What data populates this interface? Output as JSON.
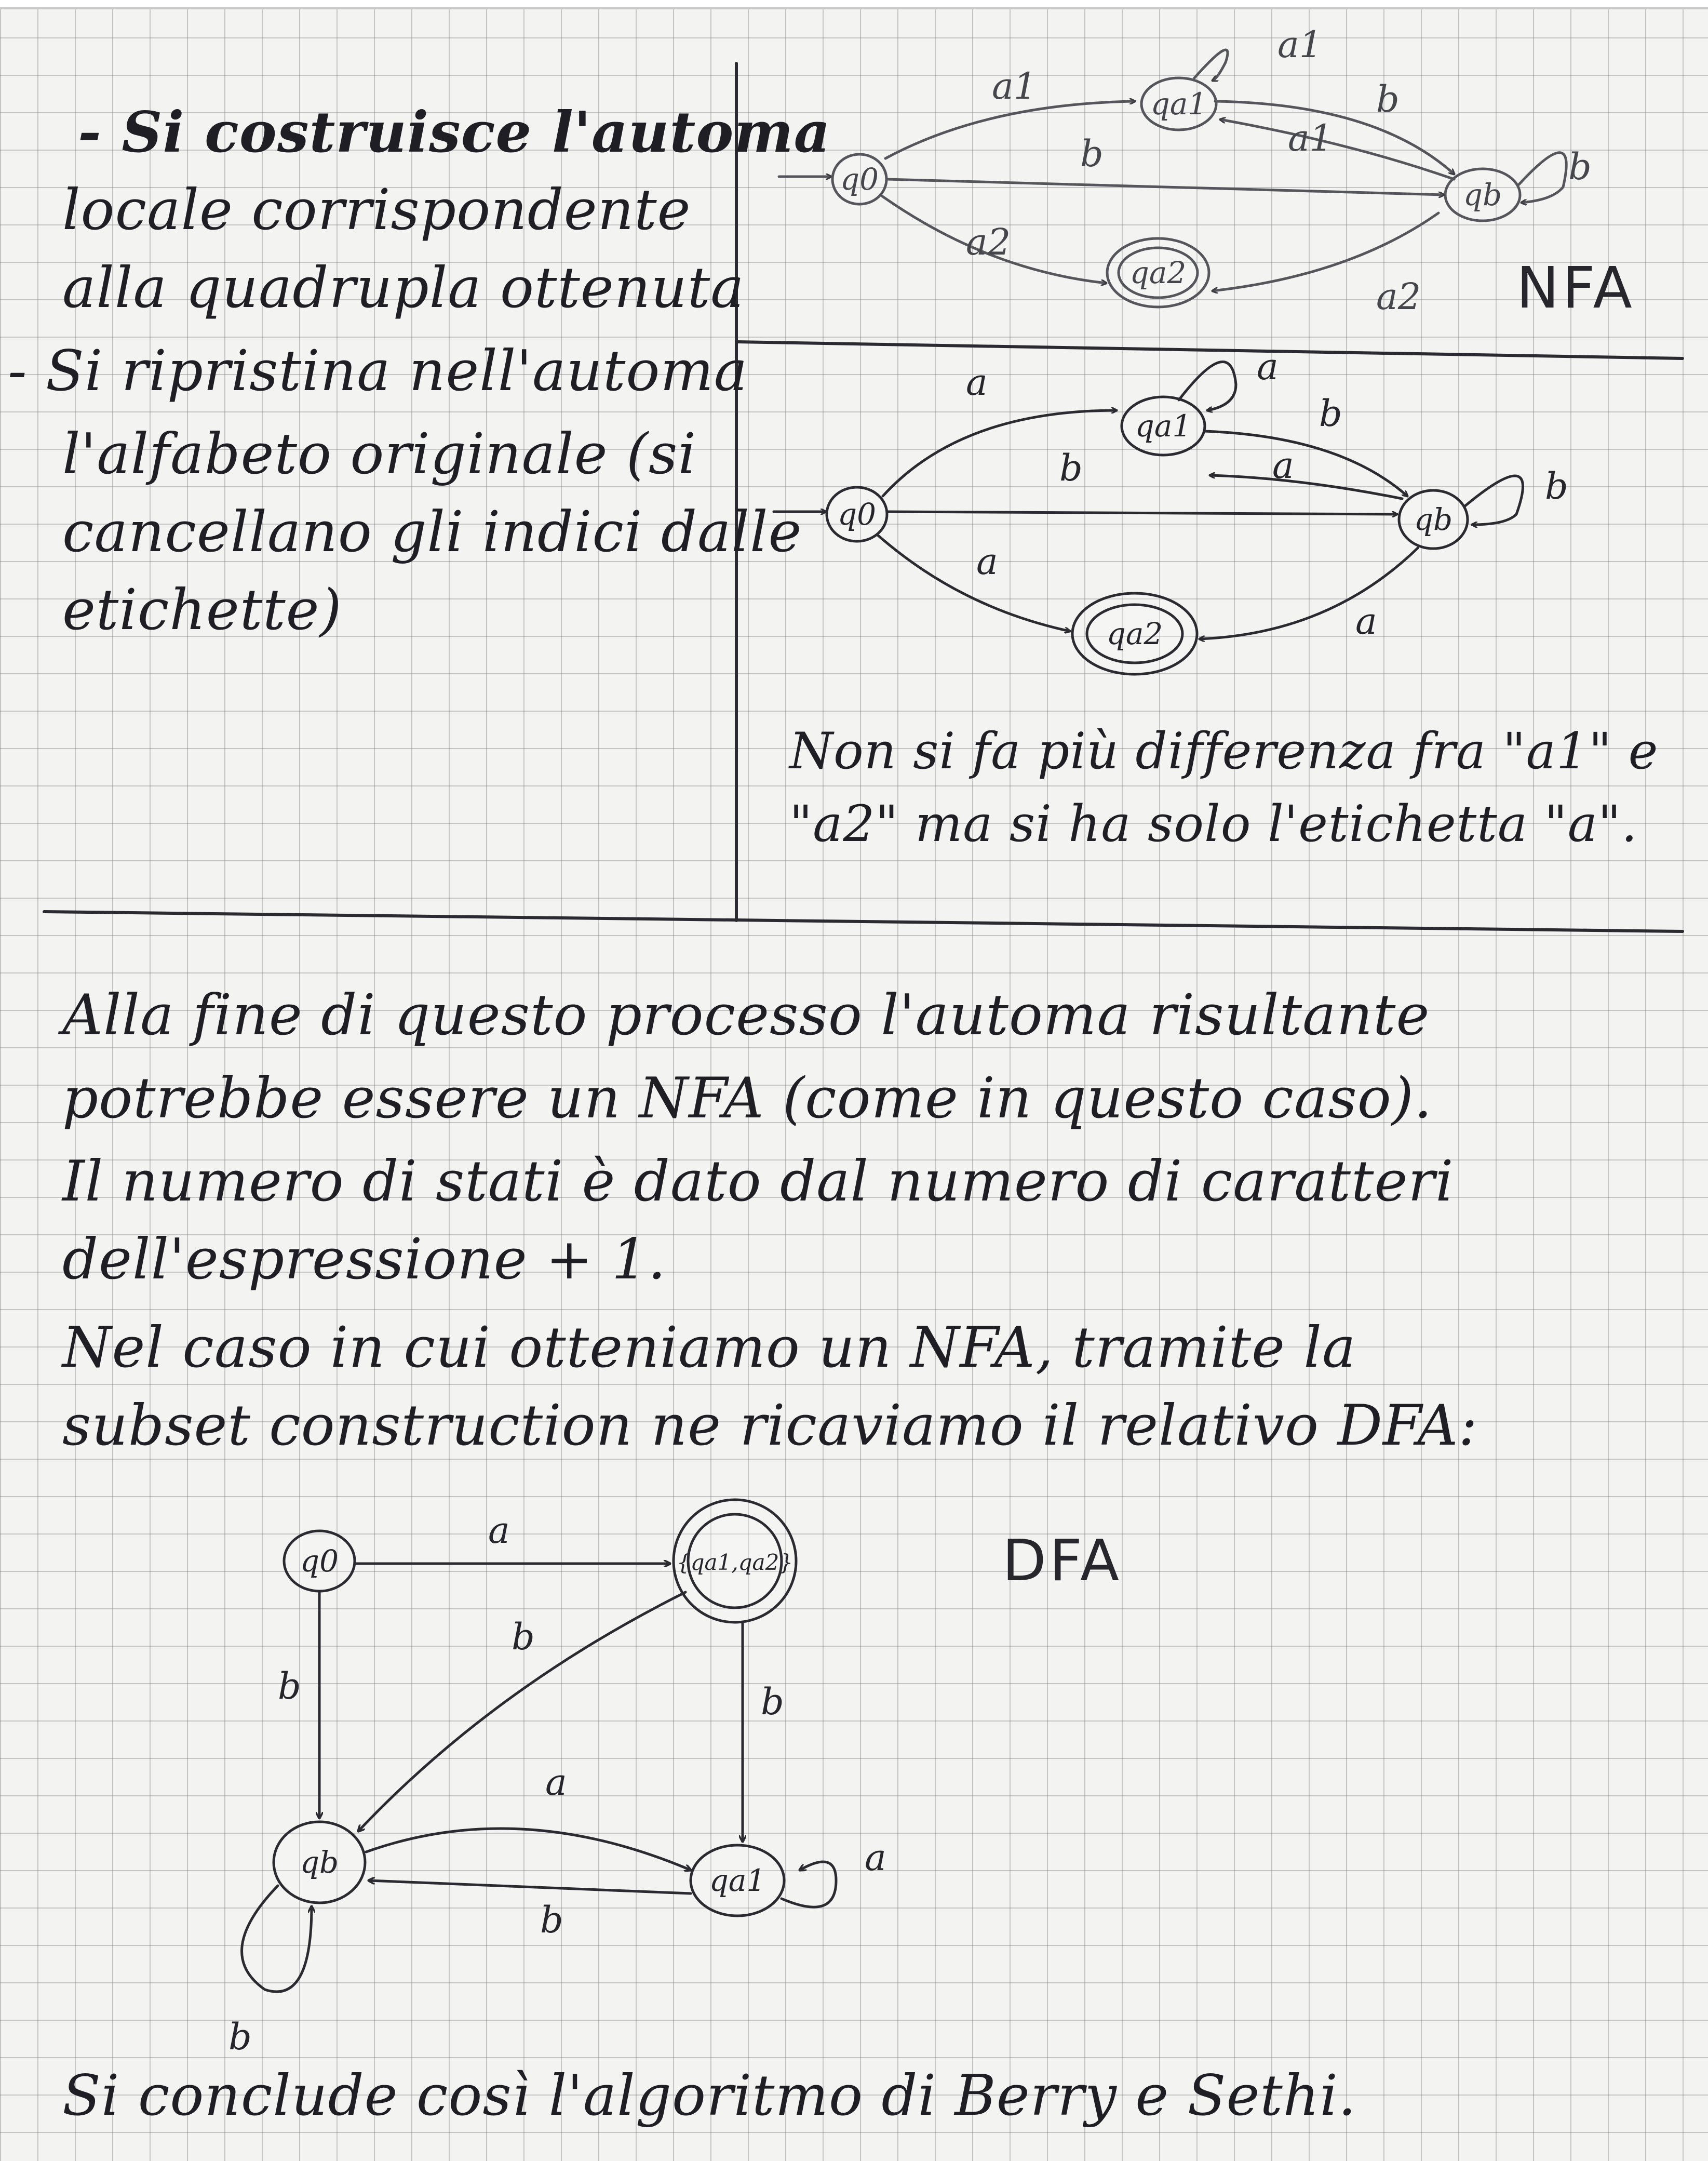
{
  "left_notes": {
    "line1": "- Si costruisce l'automa",
    "line2": "locale corrispondente",
    "line3": "alla quadrupla ottenuta",
    "line4": "- Si ripristina nell'automa",
    "line5": "l'alfabeto originale (si",
    "line6": "cancellano gli indici dalle",
    "line7": "etichette)"
  },
  "nfa_indexed": {
    "tag": "NFA",
    "states": {
      "q0": "q0",
      "qa1": "qa1",
      "qb": "qb",
      "qa2": "qa2"
    },
    "edges": {
      "q0_qa1": "a1",
      "qa1_loop": "a1",
      "qa1_qb": "b",
      "qb_qa1": "a1",
      "q0_qb": "b",
      "qb_loop": "b",
      "q0_qa2": "a2",
      "qb_qa2": "a2"
    }
  },
  "nfa_plain": {
    "states": {
      "q0": "q0",
      "qa1": "qa1",
      "qb": "qb",
      "qa2": "qa2"
    },
    "edges": {
      "q0_qa1": "a",
      "qa1_loop": "a",
      "qa1_qb": "b",
      "qb_qa1": "a",
      "q0_qb": "b",
      "qb_loop": "b",
      "q0_qa2": "a",
      "qb_qa2": "a"
    },
    "note_line1": "Non si fa più differenza fra \"a1\" e",
    "note_line2": "\"a2\" ma si ha solo l'etichetta \"a\"."
  },
  "body_text": {
    "line1": "Alla fine di questo processo l'automa risultante",
    "line2": "potrebbe essere un NFA (come in questo caso).",
    "line3": "Il numero di stati è dato dal numero di caratteri",
    "line4": "dell'espressione + 1.",
    "line5": "Nel caso in cui otteniamo un NFA, tramite la",
    "line6": "subset construction ne ricaviamo il relativo DFA:"
  },
  "dfa": {
    "tag": "DFA",
    "states": {
      "q0": "q0",
      "qa1qa2": "{qa1,qa2}",
      "qb": "qb",
      "qa1": "qa1"
    },
    "edges": {
      "q0_qa1qa2": "a",
      "qa1qa2_qb": "b",
      "q0_qb": "b",
      "qa1qa2_qa1": "b",
      "qb_qa1": "a",
      "qa1_qb": "b",
      "qa1_loop": "a",
      "qb_loop": "b"
    }
  },
  "conclusion": "Si conclude così l'algoritmo di Berry e Sethi."
}
